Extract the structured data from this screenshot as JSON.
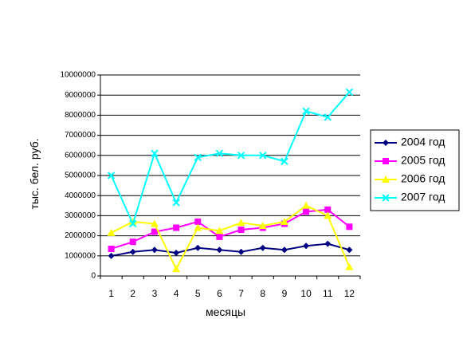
{
  "chart_data": {
    "type": "line",
    "title": "",
    "xlabel": "месяцы",
    "ylabel": "тыс. бел. руб.",
    "categories": [
      "1",
      "2",
      "3",
      "4",
      "5",
      "6",
      "7",
      "8",
      "9",
      "10",
      "11",
      "12"
    ],
    "y_ticks": [
      "0",
      "1000000",
      "2000000",
      "3000000",
      "4000000",
      "5000000",
      "6000000",
      "7000000",
      "8000000",
      "9000000",
      "10000000"
    ],
    "ylim": [
      0,
      10000000
    ],
    "grid": true,
    "legend_position": "right",
    "series": [
      {
        "name": "2004 год",
        "color": "#000080",
        "marker": "diamond",
        "values": [
          1000000,
          1200000,
          1300000,
          1150000,
          1400000,
          1300000,
          1200000,
          1400000,
          1300000,
          1500000,
          1600000,
          1300000
        ]
      },
      {
        "name": "2005 год",
        "color": "#ff00ff",
        "marker": "square",
        "values": [
          1350000,
          1700000,
          2200000,
          2400000,
          2700000,
          1950000,
          2300000,
          2400000,
          2600000,
          3200000,
          3300000,
          2450000
        ]
      },
      {
        "name": "2006 год",
        "color": "#ffff00",
        "marker": "triangle",
        "values": [
          2150000,
          2700000,
          2600000,
          350000,
          2400000,
          2250000,
          2650000,
          2500000,
          2700000,
          3500000,
          3000000,
          450000
        ]
      },
      {
        "name": "2007 год",
        "color": "#00ffff",
        "marker": "x",
        "values": [
          5000000,
          2600000,
          6100000,
          3650000,
          5900000,
          6100000,
          6000000,
          6000000,
          5700000,
          8200000,
          7900000,
          9150000
        ]
      }
    ]
  }
}
